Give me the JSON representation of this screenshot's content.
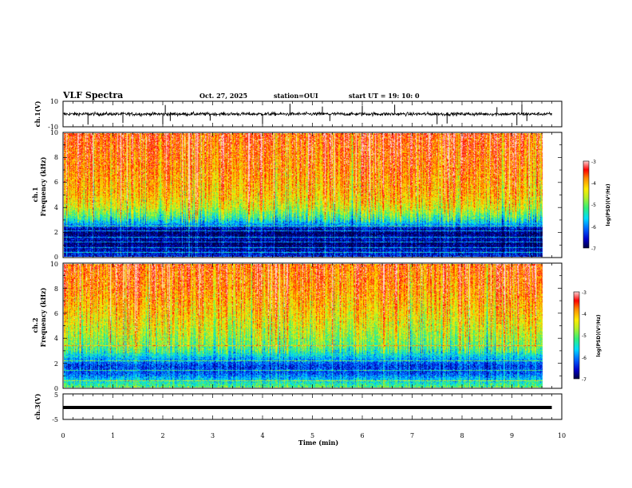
{
  "header": {
    "title": "VLF Spectra",
    "date": "Oct. 27, 2025",
    "station": "station=OUI",
    "start": "start  UT =   19: 10: 0"
  },
  "chart_data": [
    {
      "type": "line",
      "name": "ch1-waveform",
      "ylabel": "ch.1(V)",
      "xlim": [
        0,
        10
      ],
      "ylim": [
        -10,
        10
      ],
      "yticks": [
        "10",
        "-10"
      ],
      "x_data_end": 9.8,
      "baseline": 0,
      "spread": 1.5,
      "spike_times": [
        0.5,
        1.2,
        2.0,
        2.05,
        2.15,
        2.95,
        4.0,
        4.55,
        5.2,
        5.35,
        6.0,
        6.65,
        7.5,
        7.7,
        8.7,
        9.1,
        9.2,
        9.3
      ]
    },
    {
      "type": "heatmap",
      "name": "ch1-spectrogram",
      "ylabel_top": "ch.1",
      "ylabel": "Frequency (kHz)",
      "xlim": [
        0,
        10
      ],
      "ylim": [
        0,
        10
      ],
      "yticks": [
        "0",
        "2",
        "4",
        "6",
        "8",
        "10"
      ],
      "x_data_end": 9.8,
      "colorbar": {
        "label": "log(PSD)(V²/Hz)",
        "range": [
          -7,
          -3
        ],
        "ticks": [
          "-3",
          "-4",
          "-5",
          "-6",
          "-7"
        ]
      },
      "profile_khz": [
        [
          0,
          -6.4
        ],
        [
          0.6,
          -6.6
        ],
        [
          1.1,
          -6.9
        ],
        [
          1.5,
          -6.6
        ],
        [
          1.9,
          -6.9
        ],
        [
          2.3,
          -6.6
        ],
        [
          2.7,
          -5.8
        ],
        [
          3.2,
          -5.2
        ],
        [
          4.0,
          -4.5
        ],
        [
          5.0,
          -4.1
        ],
        [
          7.0,
          -3.8
        ],
        [
          10,
          -3.5
        ]
      ],
      "tones_khz": [
        0.4,
        0.8,
        1.2,
        1.6,
        2.1,
        2.5
      ]
    },
    {
      "type": "heatmap",
      "name": "ch2-spectrogram",
      "ylabel_top": "ch.2",
      "ylabel": "Frequency (kHz)",
      "xlim": [
        0,
        10
      ],
      "ylim": [
        0,
        10
      ],
      "yticks": [
        "0",
        "2",
        "4",
        "6",
        "8",
        "10"
      ],
      "x_data_end": 9.8,
      "colorbar": {
        "label": "log(PSD)(V²/Hz)",
        "range": [
          -7,
          -3
        ],
        "ticks": [
          "-3",
          "-4",
          "-5",
          "-6",
          "-7"
        ]
      },
      "profile_khz": [
        [
          0,
          -5.0
        ],
        [
          0.6,
          -5.6
        ],
        [
          1.2,
          -6.2
        ],
        [
          1.8,
          -6.3
        ],
        [
          2.4,
          -5.8
        ],
        [
          3.0,
          -5.2
        ],
        [
          3.6,
          -4.9
        ],
        [
          4.5,
          -4.6
        ],
        [
          6.0,
          -4.2
        ],
        [
          8.0,
          -3.8
        ],
        [
          10,
          -3.6
        ]
      ],
      "tones_khz": [
        0.6,
        1.4,
        2.2,
        3.4
      ]
    },
    {
      "type": "line",
      "name": "ch3-waveform",
      "ylabel": "ch.3(V)",
      "xlim": [
        0,
        10
      ],
      "ylim": [
        -5,
        5
      ],
      "yticks": [
        "5",
        "0",
        "-5"
      ],
      "x_data_end": 9.8,
      "baseline": 0,
      "spread": 0.5
    }
  ],
  "x_axis": {
    "label": "Time  (min)",
    "ticks": [
      "0",
      "1",
      "2",
      "3",
      "4",
      "5",
      "6",
      "7",
      "8",
      "9",
      "10"
    ]
  }
}
